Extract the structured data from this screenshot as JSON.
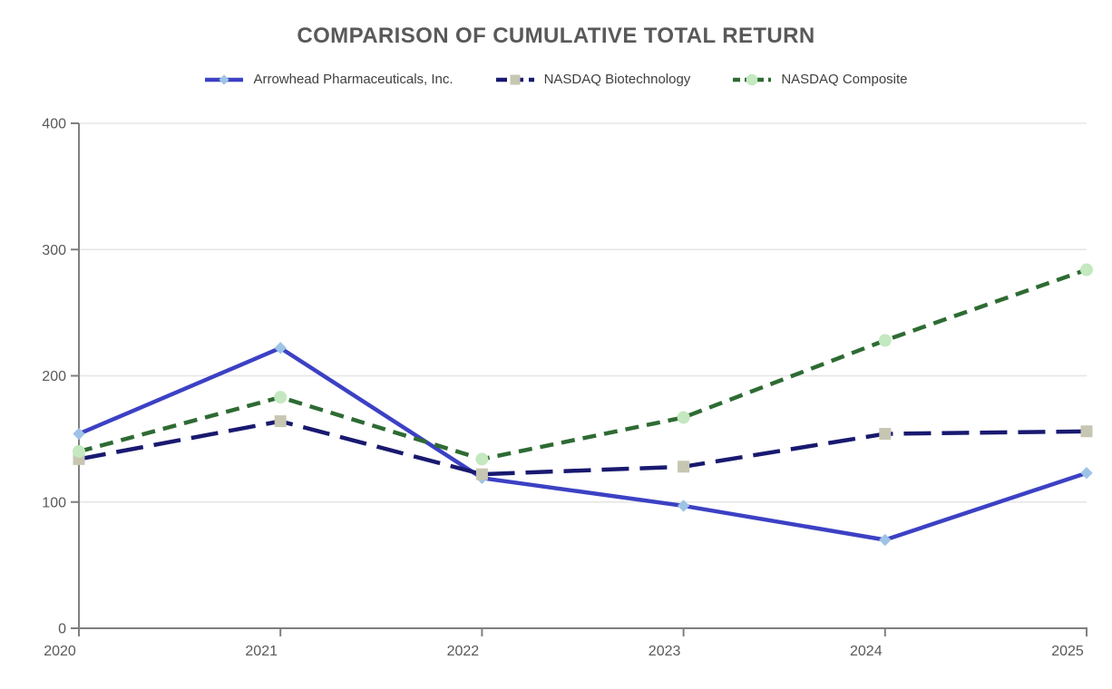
{
  "page": {
    "background": "#ffffff"
  },
  "chart_data": {
    "type": "line",
    "title": "COMPARISON OF CUMULATIVE TOTAL RETURN",
    "xlabel": "",
    "ylabel": "",
    "x_categories": [
      "2020",
      "2021",
      "2022",
      "2023",
      "2024",
      "2025"
    ],
    "yticks": [
      0,
      100,
      200,
      300,
      400
    ],
    "ylim": [
      0,
      400
    ],
    "grid": "horizontal-light",
    "legend_position": "top-center",
    "series": [
      {
        "name": "Arrowhead Pharmaceuticals, Inc.",
        "values": [
          154,
          222,
          119,
          97,
          70,
          123
        ],
        "color": "#3C41C4",
        "line_style": "solid",
        "marker": "diamond",
        "marker_color": "#9DC3E6"
      },
      {
        "name": "NASDAQ Biotechnology",
        "values": [
          134,
          164,
          122,
          128,
          154,
          156
        ],
        "color": "#191970",
        "line_style": "dashed-long",
        "marker": "square",
        "marker_color": "#C6C6B2"
      },
      {
        "name": "NASDAQ Composite",
        "values": [
          140,
          183,
          134,
          167,
          228,
          284
        ],
        "color": "#2E6B33",
        "line_style": "dashed-short",
        "marker": "circle",
        "marker_color": "#C4E8C0"
      }
    ],
    "colors": {
      "title_text": "#595959",
      "tick_label_text": "#595959",
      "legend_text": "#404040",
      "axis_line": "#7F7F7F",
      "gridline": "#E5E5E5"
    }
  }
}
